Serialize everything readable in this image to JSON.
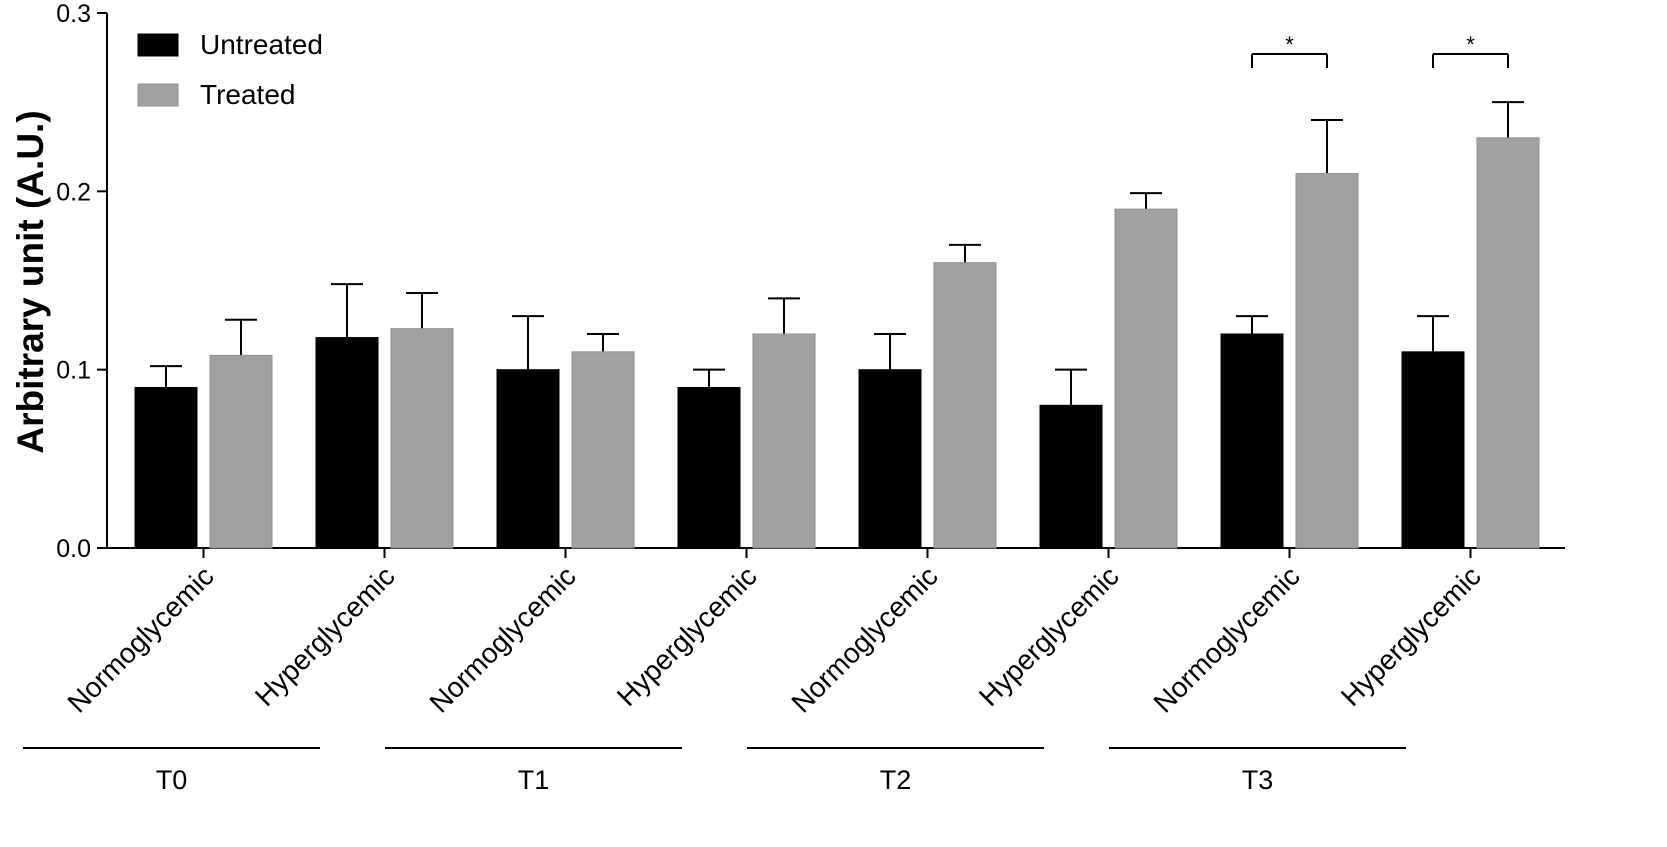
{
  "chart_data": {
    "type": "bar",
    "title": "",
    "xlabel": "",
    "ylabel": "Arbitrary unit (A.U.)",
    "ylim": [
      0,
      0.3
    ],
    "yticks": [
      0,
      0.1,
      0.2,
      0.3
    ],
    "ytick_labels": [
      "0.0",
      "0.1",
      "0.2",
      "0.3"
    ],
    "grid": false,
    "legend_position": "top-left",
    "categories": [
      "Normoglycemic",
      "Hyperglycemic",
      "Normoglycemic",
      "Hyperglycemic",
      "Normoglycemic",
      "Hyperglycemic",
      "Normoglycemic",
      "Hyperglycemic"
    ],
    "groups": [
      {
        "label": "T0",
        "categories": [
          0,
          1
        ]
      },
      {
        "label": "T1",
        "categories": [
          2,
          3
        ]
      },
      {
        "label": "T2",
        "categories": [
          4,
          5
        ]
      },
      {
        "label": "T3",
        "categories": [
          6,
          7
        ]
      }
    ],
    "series": [
      {
        "name": "Untreated",
        "color": "#000000",
        "values": [
          0.09,
          0.118,
          0.1,
          0.09,
          0.1,
          0.08,
          0.12,
          0.11
        ],
        "errors": [
          0.012,
          0.03,
          0.03,
          0.01,
          0.02,
          0.02,
          0.01,
          0.02
        ]
      },
      {
        "name": "Treated",
        "color": "#a1a1a4",
        "values": [
          0.108,
          0.123,
          0.11,
          0.12,
          0.16,
          0.19,
          0.21,
          0.23
        ],
        "errors": [
          0.02,
          0.02,
          0.01,
          0.02,
          0.01,
          0.009,
          0.03,
          0.02
        ]
      }
    ],
    "annotations": [
      {
        "category": 6,
        "text": "*"
      },
      {
        "category": 7,
        "text": "*"
      }
    ]
  }
}
